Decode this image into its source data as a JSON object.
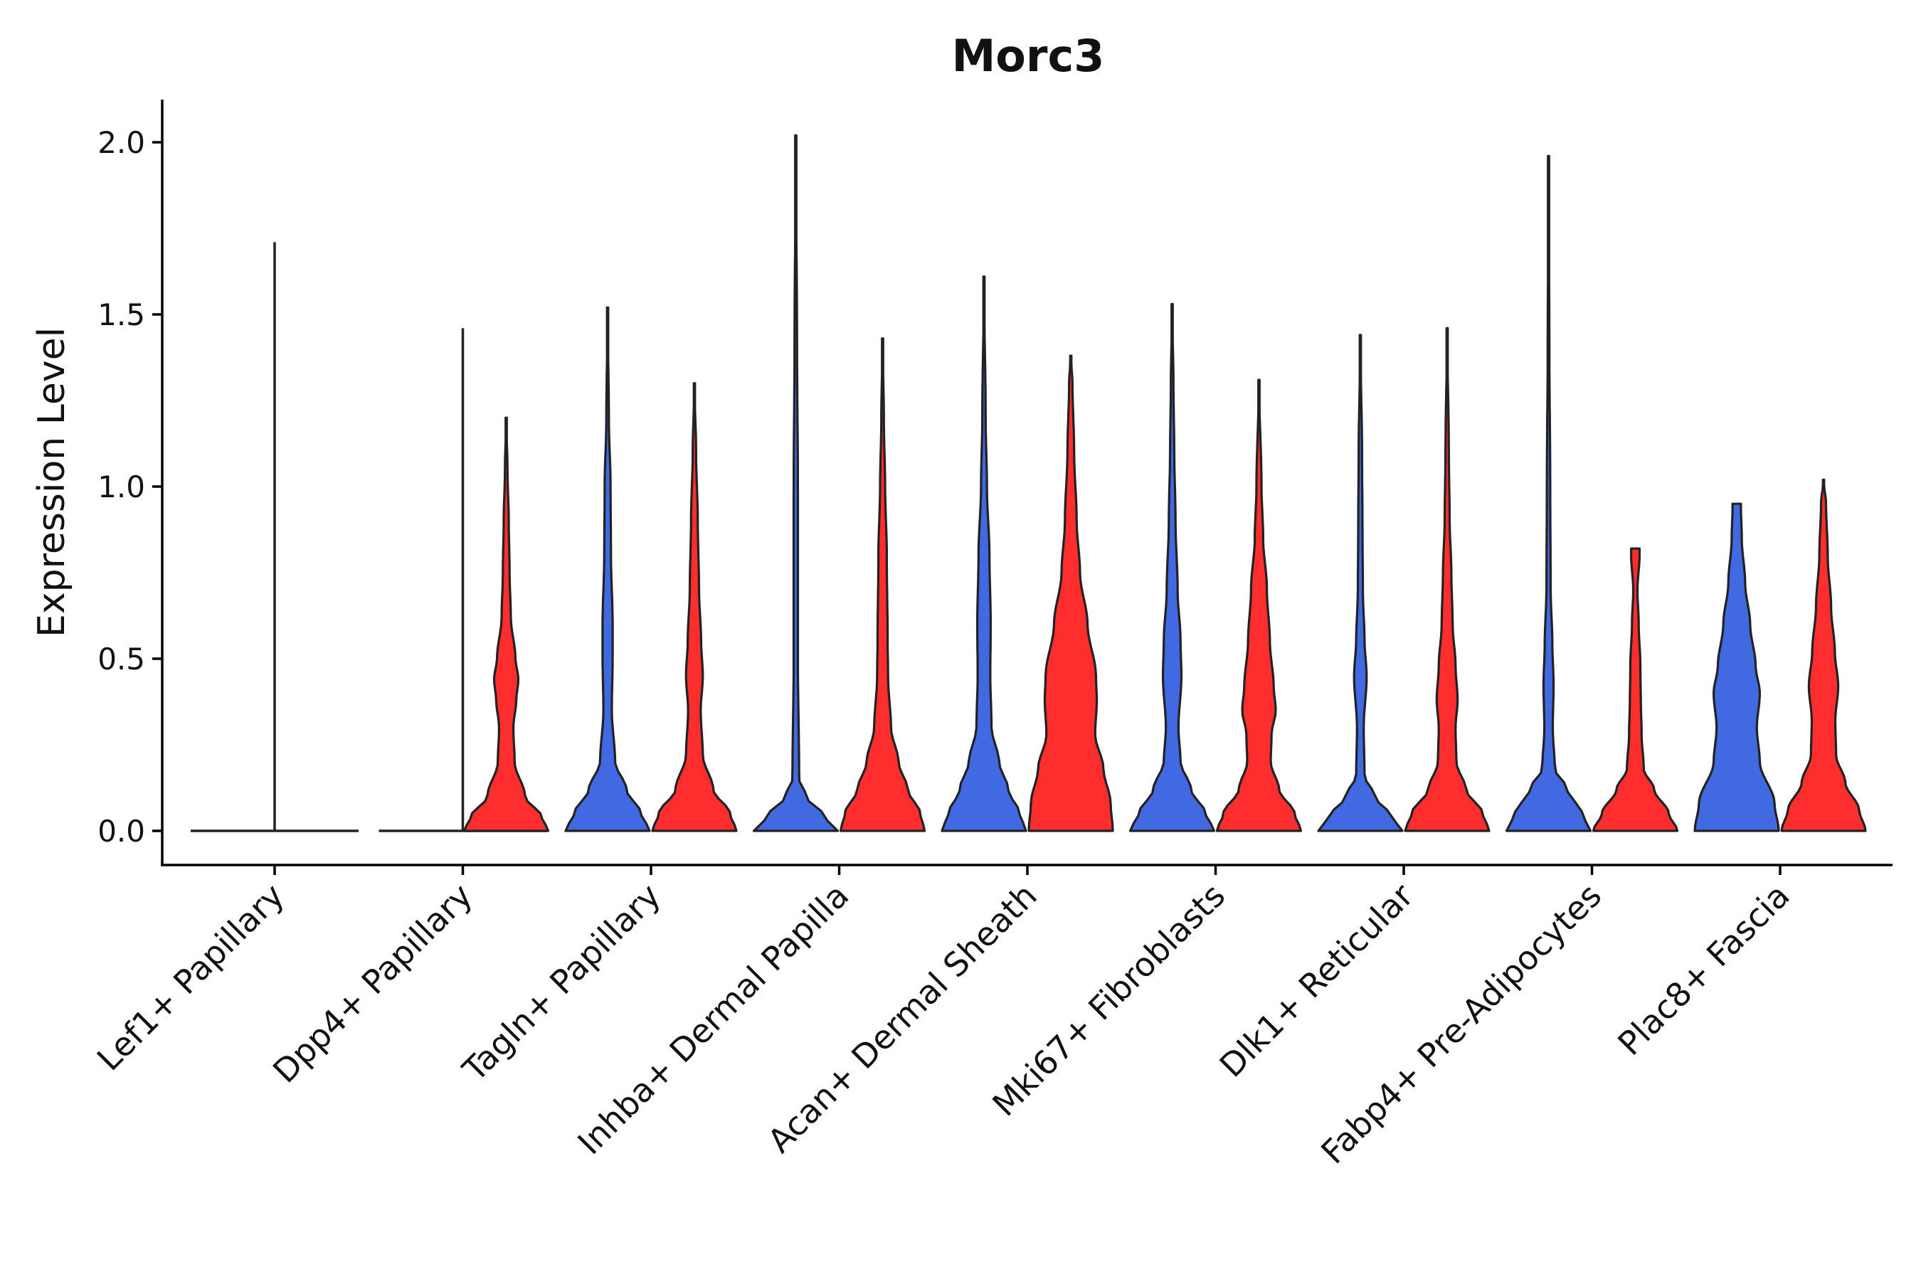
{
  "chart_data": {
    "type": "violin",
    "title": "Morc3",
    "xlabel": "",
    "ylabel": "Expression Level",
    "ylim": [
      -0.1,
      2.12
    ],
    "yticks": [
      0.0,
      0.5,
      1.0,
      1.5,
      2.0
    ],
    "ytick_labels": [
      "0.0",
      "0.5",
      "1.0",
      "1.5",
      "2.0"
    ],
    "grid": false,
    "legend": "none",
    "series_colors": {
      "left": "#4169E1",
      "right": "#FF2E2E",
      "empty": "#222222"
    },
    "categories": [
      "Lef1+ Papillary",
      "Dpp4+ Papillary",
      "Tagln+ Papillary",
      "Inhba+ Dermal Papilla",
      "Acan+ Dermal Sheath",
      "Mki67+ Fibroblasts",
      "Dlk1+ Reticular",
      "Fabp4+ Pre-Adipocytes",
      "Plac8+ Fascia"
    ],
    "violins": [
      {
        "category": "Lef1+ Papillary",
        "side": "left",
        "empty": true,
        "max": 1.71,
        "width_profile": [
          [
            0,
            1.0
          ],
          [
            0.005,
            0.2
          ],
          [
            0.01,
            0.03
          ],
          [
            1.71,
            0.0
          ]
        ]
      },
      {
        "category": "Lef1+ Papillary",
        "side": "right",
        "empty": true,
        "max": 0.0,
        "width_profile": []
      },
      {
        "category": "Dpp4+ Papillary",
        "side": "left",
        "empty": true,
        "max": 1.46,
        "width_profile": [
          [
            0,
            1.0
          ],
          [
            0.005,
            0.2
          ],
          [
            0.01,
            0.03
          ],
          [
            1.46,
            0.0
          ]
        ]
      },
      {
        "category": "Dpp4+ Papillary",
        "side": "right",
        "empty": false,
        "max": 1.2,
        "width_profile": [
          [
            0,
            1.0
          ],
          [
            0.04,
            0.85
          ],
          [
            0.1,
            0.45
          ],
          [
            0.2,
            0.2
          ],
          [
            0.3,
            0.17
          ],
          [
            0.38,
            0.24
          ],
          [
            0.44,
            0.29
          ],
          [
            0.5,
            0.22
          ],
          [
            0.62,
            0.11
          ],
          [
            0.75,
            0.08
          ],
          [
            0.9,
            0.06
          ],
          [
            1.05,
            0.03
          ],
          [
            1.2,
            0.0
          ]
        ]
      },
      {
        "category": "Tagln+ Papillary",
        "side": "left",
        "empty": false,
        "max": 1.52,
        "width_profile": [
          [
            0,
            1.0
          ],
          [
            0.05,
            0.8
          ],
          [
            0.12,
            0.45
          ],
          [
            0.2,
            0.18
          ],
          [
            0.35,
            0.1
          ],
          [
            0.5,
            0.12
          ],
          [
            0.6,
            0.12
          ],
          [
            0.8,
            0.08
          ],
          [
            1.0,
            0.07
          ],
          [
            1.2,
            0.03
          ],
          [
            1.52,
            0.0
          ]
        ]
      },
      {
        "category": "Tagln+ Papillary",
        "side": "right",
        "empty": false,
        "max": 1.3,
        "width_profile": [
          [
            0,
            1.0
          ],
          [
            0.05,
            0.85
          ],
          [
            0.12,
            0.45
          ],
          [
            0.22,
            0.2
          ],
          [
            0.35,
            0.15
          ],
          [
            0.45,
            0.2
          ],
          [
            0.55,
            0.16
          ],
          [
            0.7,
            0.11
          ],
          [
            0.9,
            0.08
          ],
          [
            1.1,
            0.04
          ],
          [
            1.3,
            0.0
          ]
        ]
      },
      {
        "category": "Inhba+ Dermal Papilla",
        "side": "left",
        "empty": false,
        "max": 2.02,
        "width_profile": [
          [
            0,
            1.0
          ],
          [
            0.04,
            0.7
          ],
          [
            0.1,
            0.25
          ],
          [
            0.15,
            0.08
          ],
          [
            0.5,
            0.05
          ],
          [
            1.0,
            0.05
          ],
          [
            1.4,
            0.03
          ],
          [
            2.02,
            0.0
          ]
        ]
      },
      {
        "category": "Inhba+ Dermal Papilla",
        "side": "right",
        "empty": false,
        "max": 1.43,
        "width_profile": [
          [
            0,
            1.0
          ],
          [
            0.05,
            0.9
          ],
          [
            0.12,
            0.6
          ],
          [
            0.2,
            0.38
          ],
          [
            0.3,
            0.2
          ],
          [
            0.45,
            0.13
          ],
          [
            0.55,
            0.12
          ],
          [
            0.8,
            0.1
          ],
          [
            1.0,
            0.06
          ],
          [
            1.2,
            0.03
          ],
          [
            1.43,
            0.0
          ]
        ]
      },
      {
        "category": "Acan+ Dermal Sheath",
        "side": "left",
        "empty": false,
        "max": 1.61,
        "width_profile": [
          [
            0,
            1.0
          ],
          [
            0.05,
            0.85
          ],
          [
            0.12,
            0.58
          ],
          [
            0.2,
            0.36
          ],
          [
            0.3,
            0.18
          ],
          [
            0.45,
            0.15
          ],
          [
            0.6,
            0.16
          ],
          [
            0.8,
            0.13
          ],
          [
            1.0,
            0.07
          ],
          [
            1.2,
            0.04
          ],
          [
            1.61,
            0.0
          ]
        ]
      },
      {
        "category": "Acan+ Dermal Sheath",
        "side": "right",
        "empty": false,
        "max": 1.38,
        "width_profile": [
          [
            0,
            1.0
          ],
          [
            0.08,
            0.95
          ],
          [
            0.18,
            0.78
          ],
          [
            0.28,
            0.58
          ],
          [
            0.38,
            0.62
          ],
          [
            0.45,
            0.6
          ],
          [
            0.6,
            0.4
          ],
          [
            0.75,
            0.22
          ],
          [
            0.9,
            0.14
          ],
          [
            1.1,
            0.08
          ],
          [
            1.3,
            0.04
          ],
          [
            1.38,
            0.0
          ]
        ]
      },
      {
        "category": "Mki67+ Fibroblasts",
        "side": "left",
        "empty": false,
        "max": 1.53,
        "width_profile": [
          [
            0,
            1.0
          ],
          [
            0.05,
            0.8
          ],
          [
            0.12,
            0.45
          ],
          [
            0.2,
            0.2
          ],
          [
            0.3,
            0.15
          ],
          [
            0.45,
            0.22
          ],
          [
            0.55,
            0.2
          ],
          [
            0.7,
            0.13
          ],
          [
            0.9,
            0.08
          ],
          [
            1.1,
            0.05
          ],
          [
            1.3,
            0.03
          ],
          [
            1.53,
            0.0
          ]
        ]
      },
      {
        "category": "Mki67+ Fibroblasts",
        "side": "right",
        "empty": false,
        "max": 1.31,
        "width_profile": [
          [
            0,
            1.0
          ],
          [
            0.05,
            0.85
          ],
          [
            0.12,
            0.48
          ],
          [
            0.2,
            0.28
          ],
          [
            0.28,
            0.3
          ],
          [
            0.35,
            0.4
          ],
          [
            0.42,
            0.35
          ],
          [
            0.55,
            0.26
          ],
          [
            0.7,
            0.19
          ],
          [
            0.85,
            0.1
          ],
          [
            1.0,
            0.06
          ],
          [
            1.31,
            0.0
          ]
        ]
      },
      {
        "category": "Dlk1+ Reticular",
        "side": "left",
        "empty": false,
        "max": 1.44,
        "width_profile": [
          [
            0,
            1.0
          ],
          [
            0.04,
            0.75
          ],
          [
            0.1,
            0.35
          ],
          [
            0.16,
            0.1
          ],
          [
            0.3,
            0.08
          ],
          [
            0.45,
            0.15
          ],
          [
            0.55,
            0.1
          ],
          [
            0.7,
            0.06
          ],
          [
            0.9,
            0.05
          ],
          [
            1.1,
            0.04
          ],
          [
            1.44,
            0.0
          ]
        ]
      },
      {
        "category": "Dlk1+ Reticular",
        "side": "right",
        "empty": false,
        "max": 1.46,
        "width_profile": [
          [
            0,
            1.0
          ],
          [
            0.05,
            0.85
          ],
          [
            0.12,
            0.45
          ],
          [
            0.2,
            0.22
          ],
          [
            0.3,
            0.2
          ],
          [
            0.38,
            0.25
          ],
          [
            0.48,
            0.2
          ],
          [
            0.6,
            0.13
          ],
          [
            0.75,
            0.1
          ],
          [
            0.9,
            0.06
          ],
          [
            1.1,
            0.04
          ],
          [
            1.46,
            0.0
          ]
        ]
      },
      {
        "category": "Fabp4+ Pre-Adipocytes",
        "side": "left",
        "empty": false,
        "max": 1.96,
        "width_profile": [
          [
            0,
            1.0
          ],
          [
            0.05,
            0.8
          ],
          [
            0.12,
            0.45
          ],
          [
            0.18,
            0.15
          ],
          [
            0.3,
            0.1
          ],
          [
            0.42,
            0.12
          ],
          [
            0.55,
            0.09
          ],
          [
            0.7,
            0.05
          ],
          [
            1.0,
            0.04
          ],
          [
            1.4,
            0.02
          ],
          [
            1.96,
            0.0
          ]
        ]
      },
      {
        "category": "Fabp4+ Pre-Adipocytes",
        "side": "right",
        "empty": false,
        "max": 0.82,
        "width_profile": [
          [
            0,
            1.0
          ],
          [
            0.05,
            0.8
          ],
          [
            0.12,
            0.45
          ],
          [
            0.18,
            0.2
          ],
          [
            0.28,
            0.15
          ],
          [
            0.38,
            0.13
          ],
          [
            0.48,
            0.12
          ],
          [
            0.6,
            0.08
          ],
          [
            0.7,
            0.05
          ],
          [
            0.8,
            0.1
          ],
          [
            0.82,
            0.1
          ]
        ]
      },
      {
        "category": "Plac8+ Fascia",
        "side": "left",
        "empty": false,
        "max": 0.95,
        "width_profile": [
          [
            0,
            1.0
          ],
          [
            0.08,
            0.9
          ],
          [
            0.2,
            0.55
          ],
          [
            0.3,
            0.48
          ],
          [
            0.4,
            0.55
          ],
          [
            0.48,
            0.45
          ],
          [
            0.6,
            0.32
          ],
          [
            0.72,
            0.2
          ],
          [
            0.85,
            0.12
          ],
          [
            0.94,
            0.1
          ],
          [
            0.95,
            0.1
          ]
        ]
      },
      {
        "category": "Plac8+ Fascia",
        "side": "right",
        "empty": false,
        "max": 1.02,
        "width_profile": [
          [
            0,
            1.0
          ],
          [
            0.06,
            0.85
          ],
          [
            0.14,
            0.52
          ],
          [
            0.22,
            0.3
          ],
          [
            0.32,
            0.28
          ],
          [
            0.42,
            0.35
          ],
          [
            0.52,
            0.27
          ],
          [
            0.65,
            0.18
          ],
          [
            0.8,
            0.1
          ],
          [
            0.95,
            0.06
          ],
          [
            1.02,
            0.0
          ]
        ]
      }
    ]
  }
}
